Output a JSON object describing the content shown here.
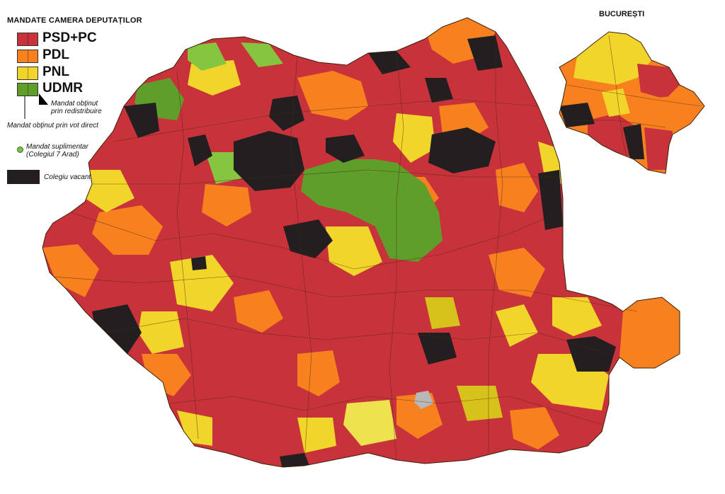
{
  "title": "MANDATE CAMERA DEPUTAȚILOR",
  "inset_title": "BUCUREȘTI",
  "legend": [
    {
      "label": "PSD+PC",
      "color": "#c8323a"
    },
    {
      "label": "PDL",
      "color": "#f7801f"
    },
    {
      "label": "PNL",
      "color": "#f2d52a"
    },
    {
      "label": "UDMR",
      "color": "#5f9e2a"
    }
  ],
  "notes": {
    "redistribution": "Mandat obținut\nprin redistribuire",
    "direct_vote": "Mandat obținut prin vot direct",
    "supplementary": "Mandat suplimentar\n(Colegiul 7 Arad)",
    "vacant": "Colegiu vacant"
  },
  "colors": {
    "psd": "#c8323a",
    "psd_dark": "#a4282c",
    "pdl": "#f7801f",
    "pnl": "#f2d52a",
    "pnl_light": "#eee24e",
    "udmr": "#5f9e2a",
    "udmr_light": "#86c540",
    "vacant": "#231f20",
    "grey": "#b8b8b8",
    "border": "#4a2a10"
  }
}
